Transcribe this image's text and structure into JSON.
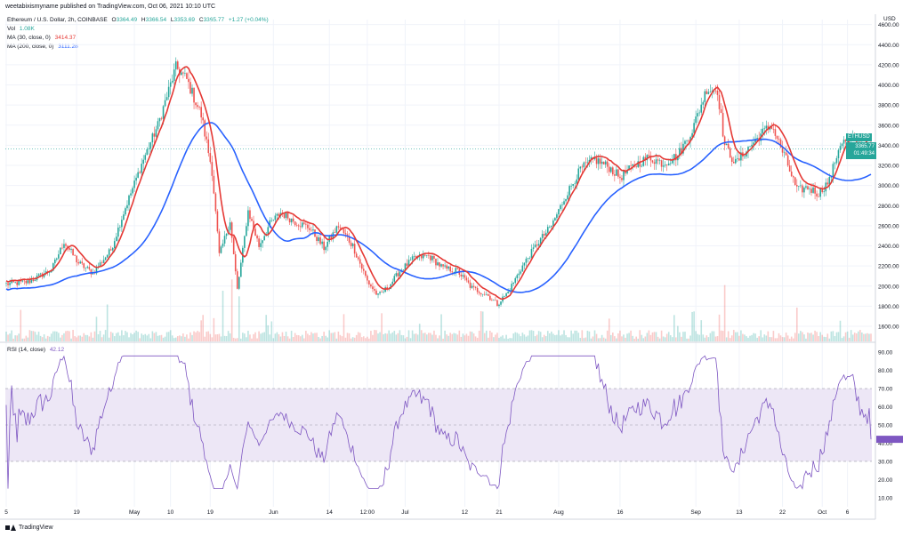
{
  "header": {
    "text": "weetabixismyname published on TradingView.com, Oct 06, 2021 10:10 UTC"
  },
  "legend": {
    "symbol": "Ethereum / U.S. Dollar, 2h, COINBASE",
    "o_label": "O",
    "o": "3364.49",
    "h_label": "H",
    "h": "3366.54",
    "l_label": "L",
    "l": "3353.69",
    "c_label": "C",
    "c": "3365.77",
    "change": "+1.27 (+0.04%)",
    "vol_label": "Vol",
    "vol": "1.08K",
    "ma30_label": "MA (30, close, 0)",
    "ma30": "3414.37",
    "ma200_label": "MA (200, close, 0)",
    "ma200": "3111.28"
  },
  "rsi_legend": {
    "label": "RSI (14, close)",
    "value": "42.12"
  },
  "price_box": {
    "price": "3365.77",
    "countdown": "01:49:34"
  },
  "pair_tag": "ETHUSD",
  "currency": "USD",
  "footer": {
    "brand": "TradingView"
  },
  "colors": {
    "up": "#26a69a",
    "down": "#ef5350",
    "ma30": "#e53935",
    "ma200": "#2962ff",
    "rsi": "#7e57c2",
    "rsi_band": "#ede7f6",
    "grid": "#f0f3fa",
    "axis_text": "#131722"
  },
  "chart_data": [
    {
      "type": "candlestick",
      "title": "Ethereum / U.S. Dollar, 2h, COINBASE",
      "ylim": [
        1450,
        4650
      ],
      "y_ticks": [
        1600,
        1800,
        2000,
        2200,
        2400,
        2600,
        2800,
        3000,
        3200,
        3400,
        3600,
        3800,
        4000,
        4200,
        4400,
        4600
      ],
      "y_tick_labels": [
        "1600.00",
        "1800.00",
        "2000.00",
        "2200.00",
        "2400.00",
        "2600.00",
        "2800.00",
        "3000.00",
        "3200.00",
        "3400.00",
        "3600.00",
        "3800.00",
        "4000.00",
        "4200.00",
        "4400.00",
        "4600.00"
      ],
      "x_tick_labels": [
        "5",
        "19",
        "May",
        "10",
        "19",
        "Jun",
        "14",
        "12:00",
        "Jul",
        "12",
        "21",
        "Aug",
        "16",
        "Sep",
        "13",
        "22",
        "Oct",
        "6"
      ],
      "x_tick_idx": [
        0,
        39,
        71,
        91,
        113,
        148,
        179,
        200,
        221,
        254,
        273,
        306,
        340,
        382,
        406,
        430,
        452,
        466
      ],
      "n_bars": 480,
      "series": [
        {
          "name": "MA (30, close, 0)",
          "last": 3414.37
        },
        {
          "name": "MA (200, close, 0)",
          "last": 3111.28
        }
      ],
      "close_anchors": [
        [
          0,
          2020
        ],
        [
          12,
          2040
        ],
        [
          25,
          2160
        ],
        [
          32,
          2440
        ],
        [
          40,
          2230
        ],
        [
          48,
          2130
        ],
        [
          58,
          2360
        ],
        [
          66,
          2780
        ],
        [
          76,
          3260
        ],
        [
          84,
          3600
        ],
        [
          94,
          4180
        ],
        [
          100,
          4050
        ],
        [
          108,
          3700
        ],
        [
          114,
          3150
        ],
        [
          118,
          2300
        ],
        [
          124,
          2650
        ],
        [
          128,
          1960
        ],
        [
          134,
          2750
        ],
        [
          140,
          2400
        ],
        [
          146,
          2620
        ],
        [
          152,
          2730
        ],
        [
          160,
          2640
        ],
        [
          168,
          2580
        ],
        [
          176,
          2380
        ],
        [
          184,
          2600
        ],
        [
          192,
          2400
        ],
        [
          200,
          2050
        ],
        [
          206,
          1900
        ],
        [
          212,
          2000
        ],
        [
          218,
          2150
        ],
        [
          226,
          2280
        ],
        [
          234,
          2300
        ],
        [
          242,
          2180
        ],
        [
          250,
          2150
        ],
        [
          258,
          1980
        ],
        [
          266,
          1920
        ],
        [
          272,
          1820
        ],
        [
          278,
          1940
        ],
        [
          286,
          2200
        ],
        [
          294,
          2420
        ],
        [
          302,
          2600
        ],
        [
          310,
          2900
        ],
        [
          318,
          3160
        ],
        [
          326,
          3260
        ],
        [
          334,
          3180
        ],
        [
          340,
          3080
        ],
        [
          348,
          3200
        ],
        [
          356,
          3280
        ],
        [
          364,
          3220
        ],
        [
          372,
          3300
        ],
        [
          380,
          3550
        ],
        [
          388,
          3960
        ],
        [
          394,
          3950
        ],
        [
          398,
          3400
        ],
        [
          404,
          3220
        ],
        [
          410,
          3350
        ],
        [
          418,
          3510
        ],
        [
          424,
          3600
        ],
        [
          432,
          3250
        ],
        [
          438,
          2950
        ],
        [
          444,
          2980
        ],
        [
          450,
          2920
        ],
        [
          456,
          3050
        ],
        [
          462,
          3420
        ],
        [
          468,
          3460
        ],
        [
          474,
          3380
        ],
        [
          479,
          3365
        ]
      ],
      "volume_spikes": [
        [
          120,
          0.45
        ],
        [
          125,
          0.55
        ],
        [
          129,
          0.4
        ],
        [
          398,
          0.5
        ],
        [
          438,
          0.3
        ],
        [
          208,
          0.25
        ]
      ]
    },
    {
      "type": "line",
      "title": "RSI (14, close)",
      "ylim": [
        5,
        95
      ],
      "y_ticks": [
        10,
        20,
        30,
        40,
        50,
        60,
        70,
        80,
        90
      ],
      "y_tick_labels": [
        "10.00",
        "20.00",
        "30.00",
        "40.00",
        "50.00",
        "60.00",
        "70.00",
        "80.00",
        "90.00"
      ],
      "band": [
        30,
        70
      ],
      "last": 42.12
    }
  ]
}
